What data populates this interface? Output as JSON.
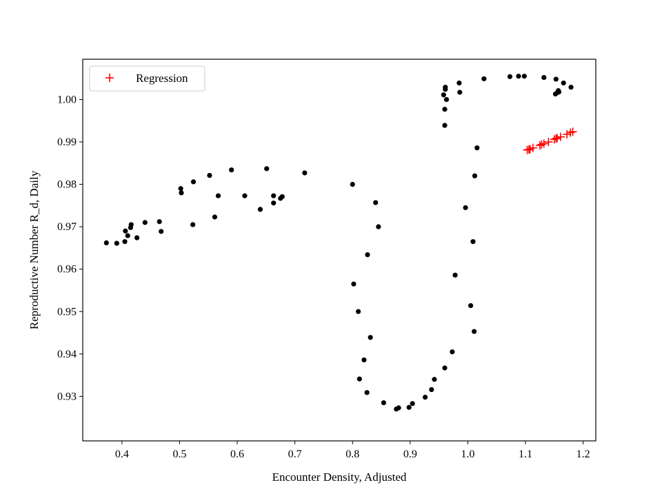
{
  "chart_data": {
    "type": "scatter",
    "title": "",
    "xlabel": "Encounter Density, Adjusted",
    "ylabel": "Reproductive Number R_d, Daily",
    "xlim": [
      0.332,
      1.222
    ],
    "ylim": [
      0.9195,
      1.0095
    ],
    "xticks": [
      0.4,
      0.5,
      0.6,
      0.7,
      0.8,
      0.9,
      1.0,
      1.1,
      1.2
    ],
    "xtick_labels": [
      "0.4",
      "0.5",
      "0.6",
      "0.7",
      "0.8",
      "0.9",
      "1.0",
      "1.1",
      "1.2"
    ],
    "yticks": [
      0.93,
      0.94,
      0.95,
      0.96,
      0.97,
      0.98,
      0.99,
      1.0
    ],
    "ytick_labels": [
      "0.93",
      "0.94",
      "0.95",
      "0.96",
      "0.97",
      "0.98",
      "0.99",
      "1.00"
    ],
    "grid": false,
    "legend_position": "upper left",
    "series": [
      {
        "name": "",
        "marker": "dot",
        "color": "#000000",
        "points": [
          [
            0.373,
            0.9662
          ],
          [
            0.391,
            0.9661
          ],
          [
            0.405,
            0.9665
          ],
          [
            0.406,
            0.969
          ],
          [
            0.41,
            0.9679
          ],
          [
            0.415,
            0.9698
          ],
          [
            0.416,
            0.9705
          ],
          [
            0.426,
            0.9674
          ],
          [
            0.44,
            0.971
          ],
          [
            0.465,
            0.9712
          ],
          [
            0.468,
            0.9689
          ],
          [
            0.502,
            0.979
          ],
          [
            0.503,
            0.978
          ],
          [
            0.523,
            0.9705
          ],
          [
            0.524,
            0.9806
          ],
          [
            0.552,
            0.9821
          ],
          [
            0.561,
            0.9723
          ],
          [
            0.567,
            0.9773
          ],
          [
            0.59,
            0.9834
          ],
          [
            0.613,
            0.9773
          ],
          [
            0.64,
            0.9741
          ],
          [
            0.651,
            0.9837
          ],
          [
            0.663,
            0.9756
          ],
          [
            0.663,
            0.9773
          ],
          [
            0.675,
            0.9767
          ],
          [
            0.678,
            0.9771
          ],
          [
            0.717,
            0.9827
          ],
          [
            0.8,
            0.98
          ],
          [
            0.802,
            0.9565
          ],
          [
            0.81,
            0.95
          ],
          [
            0.812,
            0.9341
          ],
          [
            0.82,
            0.9386
          ],
          [
            0.825,
            0.9309
          ],
          [
            0.826,
            0.9634
          ],
          [
            0.831,
            0.9439
          ],
          [
            0.84,
            0.9757
          ],
          [
            0.845,
            0.97
          ],
          [
            0.854,
            0.9285
          ],
          [
            0.876,
            0.927
          ],
          [
            0.88,
            0.9273
          ],
          [
            0.898,
            0.9274
          ],
          [
            0.904,
            0.9283
          ],
          [
            0.926,
            0.9298
          ],
          [
            0.937,
            0.9316
          ],
          [
            0.942,
            0.934
          ],
          [
            0.958,
            1.0011
          ],
          [
            0.96,
            0.9367
          ],
          [
            0.96,
            0.9977
          ],
          [
            0.96,
            0.9939
          ],
          [
            0.961,
            1.0024
          ],
          [
            0.961,
            1.0029
          ],
          [
            0.963,
            1.0
          ],
          [
            0.973,
            0.9405
          ],
          [
            0.978,
            0.9586
          ],
          [
            0.985,
            1.0039
          ],
          [
            0.986,
            1.0017
          ],
          [
            0.996,
            0.9745
          ],
          [
            1.005,
            0.9514
          ],
          [
            1.009,
            0.9665
          ],
          [
            1.011,
            0.9453
          ],
          [
            1.012,
            0.982
          ],
          [
            1.016,
            0.9886
          ],
          [
            1.028,
            1.0049
          ],
          [
            1.073,
            1.0054
          ],
          [
            1.088,
            1.0055
          ],
          [
            1.098,
            1.0055
          ],
          [
            1.132,
            1.0052
          ],
          [
            1.152,
            1.0013
          ],
          [
            1.153,
            1.0048
          ],
          [
            1.155,
            1.0016
          ],
          [
            1.157,
            1.0021
          ],
          [
            1.158,
            1.0018
          ],
          [
            1.166,
            1.0039
          ],
          [
            1.179,
            1.0029
          ]
        ]
      },
      {
        "name": "Regression",
        "marker": "plus",
        "color": "#ff0000",
        "points": [
          [
            1.103,
            0.9881
          ],
          [
            1.106,
            0.9882
          ],
          [
            1.108,
            0.9883
          ],
          [
            1.113,
            0.9886
          ],
          [
            1.125,
            0.9892
          ],
          [
            1.128,
            0.9894
          ],
          [
            1.132,
            0.9896
          ],
          [
            1.14,
            0.99
          ],
          [
            1.15,
            0.9906
          ],
          [
            1.153,
            0.9908
          ],
          [
            1.155,
            0.9909
          ],
          [
            1.161,
            0.9912
          ],
          [
            1.172,
            0.9918
          ],
          [
            1.178,
            0.9922
          ],
          [
            1.182,
            0.9924
          ]
        ]
      }
    ]
  }
}
